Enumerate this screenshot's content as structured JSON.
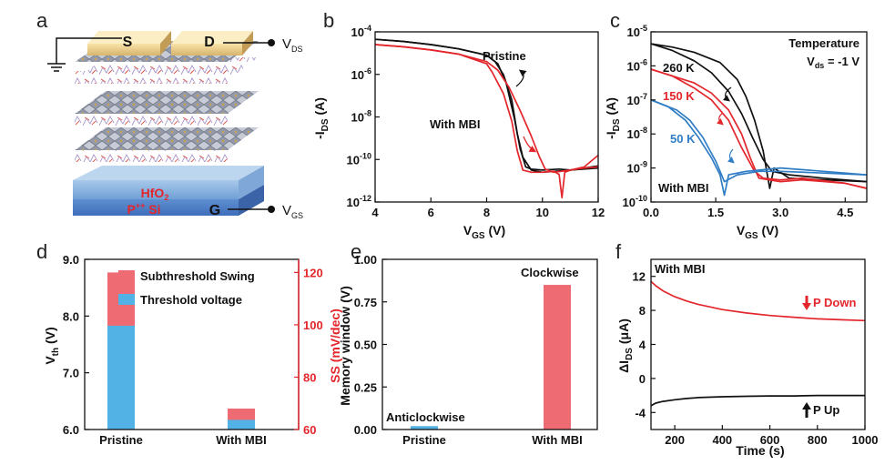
{
  "panels": {
    "a": {
      "letter": "a",
      "labels": {
        "source": "S",
        "drain": "D",
        "gate": "G",
        "oxide": "HfO",
        "oxide_sub": "2",
        "substrate": "P",
        "substrate_sup": "++",
        "substrate_tail": " Si",
        "vds": "V",
        "vds_sub": "DS",
        "vgs": "V",
        "vgs_sub": "GS"
      }
    }
  },
  "colors": {
    "black": "#111111",
    "red": "#e3262b",
    "blue": "#2f7dc4",
    "bar_red": "#ef6b74",
    "bar_blue": "#52b1e5"
  },
  "chart_data": [
    {
      "id": "b",
      "letter": "b",
      "type": "line",
      "xlabel": "V",
      "xlabel_sub": "GS",
      "xlabel_tail": " (V)",
      "ylabel": "-I",
      "ylabel_sub": "DS",
      "ylabel_tail": " (A)",
      "xlim": [
        4,
        12
      ],
      "ylim": [
        -12,
        -4
      ],
      "yscale": "log",
      "x_ticks": [
        4,
        6,
        8,
        10,
        12
      ],
      "y_ticks": [
        {
          "exp": "-4"
        },
        {
          "exp": "-6"
        },
        {
          "exp": "-8"
        },
        {
          "exp": "-10"
        },
        {
          "exp": "-12"
        }
      ],
      "annotations": [
        "Pristine",
        "With MBI"
      ],
      "series": [
        {
          "name": "Pristine forward",
          "color": "#111111",
          "x": [
            4.0,
            5.0,
            6.0,
            7.0,
            8.0,
            8.4,
            8.7,
            9.0,
            9.2,
            9.4,
            9.6,
            10.0,
            10.6,
            11.0,
            11.5,
            12.0
          ],
          "y": [
            -4.35,
            -4.45,
            -4.6,
            -4.8,
            -5.1,
            -5.5,
            -6.4,
            -8.1,
            -9.5,
            -10.35,
            -10.45,
            -10.5,
            -10.45,
            -10.5,
            -10.4,
            -10.3
          ]
        },
        {
          "name": "Pristine reverse",
          "color": "#111111",
          "x": [
            12.0,
            11.0,
            10.5,
            10.0,
            9.6,
            9.3,
            9.1,
            8.9,
            8.6,
            8.3,
            8.0,
            7.0,
            6.0,
            5.0,
            4.0
          ],
          "y": [
            -10.4,
            -10.5,
            -10.55,
            -10.6,
            -10.5,
            -9.9,
            -8.8,
            -7.2,
            -6.0,
            -5.4,
            -5.1,
            -4.8,
            -4.6,
            -4.45,
            -4.35
          ]
        },
        {
          "name": "With MBI forward",
          "color": "#e3262b",
          "x": [
            4.0,
            5.0,
            6.0,
            7.0,
            8.0,
            8.4,
            8.8,
            9.2,
            9.6,
            9.9,
            10.1,
            10.4,
            10.7,
            11.0,
            11.5,
            12.0
          ],
          "y": [
            -4.6,
            -4.7,
            -4.85,
            -5.05,
            -5.4,
            -5.8,
            -6.6,
            -7.7,
            -8.9,
            -9.9,
            -10.45,
            -10.6,
            -10.55,
            -10.5,
            -10.35,
            -9.8
          ]
        },
        {
          "name": "With MBI reverse",
          "color": "#e3262b",
          "x": [
            12.0,
            11.5,
            11.0,
            10.8,
            10.7,
            10.6,
            10.4,
            10.0,
            9.6,
            9.3,
            9.1,
            8.9,
            8.6,
            8.2,
            8.0,
            7.0,
            6.0,
            5.0,
            4.0
          ],
          "y": [
            -10.35,
            -10.4,
            -10.5,
            -10.6,
            -11.8,
            -10.7,
            -10.55,
            -10.6,
            -10.6,
            -10.5,
            -9.6,
            -8.2,
            -6.9,
            -5.9,
            -5.5,
            -5.05,
            -4.85,
            -4.7,
            -4.6
          ]
        }
      ]
    },
    {
      "id": "c",
      "letter": "c",
      "type": "line",
      "xlabel": "V",
      "xlabel_sub": "GS",
      "xlabel_tail": " (V)",
      "ylabel": "-I",
      "ylabel_sub": "DS",
      "ylabel_tail": " (A)",
      "xlim": [
        0,
        5.0
      ],
      "ylim": [
        -10,
        -5
      ],
      "yscale": "log",
      "x_ticks": [
        0,
        1.5,
        3.0,
        4.5
      ],
      "x_tick_labels": [
        "0.0",
        "1.5",
        "3.0",
        "4.5"
      ],
      "y_ticks": [
        {
          "exp": "-5"
        },
        {
          "exp": "-6"
        },
        {
          "exp": "-7"
        },
        {
          "exp": "-8"
        },
        {
          "exp": "-9"
        },
        {
          "exp": "-10"
        }
      ],
      "annotations": [
        "Temperature",
        "V",
        "ds",
        " = -1 V",
        "With MBI"
      ],
      "series": [
        {
          "name": "260 K",
          "color": "#111111",
          "x": [
            0.0,
            0.5,
            1.0,
            1.4,
            1.8,
            2.1,
            2.35,
            2.6,
            2.8,
            3.2,
            4.0,
            5.0
          ],
          "y": [
            -5.35,
            -5.55,
            -5.85,
            -6.2,
            -6.75,
            -7.4,
            -8.1,
            -8.75,
            -9.1,
            -9.2,
            -9.3,
            -9.4
          ]
        },
        {
          "name": "260 K reverse",
          "color": "#111111",
          "x": [
            5.0,
            4.0,
            3.2,
            2.85,
            2.75,
            2.6,
            2.4,
            2.2,
            2.0,
            1.6,
            1.0,
            0.5,
            0.0
          ],
          "y": [
            -9.4,
            -9.35,
            -9.3,
            -9.0,
            -9.6,
            -8.5,
            -7.6,
            -6.9,
            -6.4,
            -5.9,
            -5.6,
            -5.45,
            -5.35
          ]
        },
        {
          "name": "150 K",
          "color": "#e3262b",
          "x": [
            0.0,
            0.5,
            1.0,
            1.4,
            1.8,
            2.1,
            2.4,
            2.6,
            3.0,
            3.5,
            4.5,
            5.0
          ],
          "y": [
            -6.1,
            -6.3,
            -6.65,
            -7.0,
            -7.6,
            -8.4,
            -9.1,
            -9.3,
            -9.35,
            -9.3,
            -9.45,
            -9.6
          ]
        },
        {
          "name": "150 K reverse",
          "color": "#e3262b",
          "x": [
            5.0,
            4.5,
            3.5,
            3.0,
            2.5,
            2.3,
            2.1,
            1.8,
            1.4,
            1.0,
            0.5,
            0.0
          ],
          "y": [
            -9.6,
            -9.45,
            -9.35,
            -9.4,
            -9.3,
            -8.7,
            -8.0,
            -7.3,
            -6.8,
            -6.5,
            -6.3,
            -6.1
          ]
        },
        {
          "name": "50 K",
          "color": "#2f7dc4",
          "x": [
            0.0,
            0.4,
            0.8,
            1.1,
            1.4,
            1.6,
            1.7,
            1.8,
            2.2,
            3.0,
            4.0,
            5.0
          ],
          "y": [
            -7.0,
            -7.2,
            -7.6,
            -8.1,
            -8.7,
            -9.2,
            -9.8,
            -9.2,
            -9.1,
            -9.0,
            -9.1,
            -9.2
          ]
        },
        {
          "name": "50 K reverse",
          "color": "#2f7dc4",
          "x": [
            5.0,
            4.0,
            3.0,
            2.5,
            2.0,
            1.7,
            1.5,
            1.2,
            0.9,
            0.6,
            0.3,
            0.0
          ],
          "y": [
            -9.2,
            -9.15,
            -9.1,
            -9.1,
            -9.2,
            -9.4,
            -8.8,
            -8.1,
            -7.6,
            -7.3,
            -7.15,
            -7.0
          ]
        }
      ]
    },
    {
      "id": "d",
      "letter": "d",
      "type": "bar",
      "categories": [
        "Pristine",
        "With MBI"
      ],
      "ylabel": "V",
      "ylabel_sub": "th",
      "ylabel_tail": " (V)",
      "y2label": "SS (mV/dec)",
      "ylim": [
        6.0,
        9.0
      ],
      "y_ticks": [
        6.0,
        7.0,
        8.0,
        9.0
      ],
      "y_tick_labels": [
        "6.0",
        "7.0",
        "8.0",
        "9.0"
      ],
      "y2lim": [
        60,
        125
      ],
      "y2_ticks": [
        60,
        80,
        100,
        120
      ],
      "legend": [
        "Subthreshold Swing",
        "Threshold voltage"
      ],
      "series": [
        {
          "name": "Subthreshold Swing",
          "axis": "right",
          "color": "#ef6b74",
          "values": [
            120,
            68
          ]
        },
        {
          "name": "Threshold voltage",
          "axis": "left",
          "color": "#52b1e5",
          "values": [
            7.83,
            6.17
          ]
        }
      ]
    },
    {
      "id": "e",
      "letter": "e",
      "type": "bar",
      "categories": [
        "Pristine",
        "With MBI"
      ],
      "ylabel": "Memory window (V)",
      "ylim": [
        0,
        1.0
      ],
      "y_ticks": [
        0,
        0.25,
        0.5,
        0.75,
        1.0
      ],
      "y_tick_labels": [
        "0.00",
        "0.25",
        "0.50",
        "0.75",
        "1.00"
      ],
      "annotations": [
        "Anticlockwise",
        "Clockwise"
      ],
      "series": [
        {
          "name": "Memory window",
          "colors": [
            "#52b1e5",
            "#ef6b74"
          ],
          "values": [
            0.02,
            0.85
          ]
        }
      ]
    },
    {
      "id": "f",
      "letter": "f",
      "type": "line",
      "xlabel": "Time (s)",
      "ylabel": "ΔI",
      "ylabel_sub": "DS",
      "ylabel_tail": " (μA)",
      "xlim": [
        100,
        1000
      ],
      "ylim": [
        -6,
        14
      ],
      "x_ticks": [
        200,
        400,
        600,
        800,
        1000
      ],
      "y_ticks": [
        -4,
        0,
        4,
        8,
        12
      ],
      "annotations": [
        "With MBI",
        "P Down",
        "P Up"
      ],
      "series": [
        {
          "name": "P Down",
          "color": "#e3262b",
          "x": [
            100,
            120,
            150,
            200,
            250,
            300,
            400,
            500,
            600,
            700,
            800,
            900,
            1000
          ],
          "y": [
            11.4,
            10.9,
            10.3,
            9.6,
            9.1,
            8.7,
            8.1,
            7.7,
            7.4,
            7.2,
            7.0,
            6.9,
            6.8
          ]
        },
        {
          "name": "P Up",
          "color": "#111111",
          "x": [
            100,
            120,
            150,
            200,
            250,
            300,
            400,
            500,
            600,
            700,
            800,
            900,
            1000
          ],
          "y": [
            -3.2,
            -2.9,
            -2.7,
            -2.5,
            -2.35,
            -2.25,
            -2.15,
            -2.1,
            -2.05,
            -2.05,
            -2.0,
            -2.0,
            -2.0
          ]
        }
      ]
    }
  ]
}
